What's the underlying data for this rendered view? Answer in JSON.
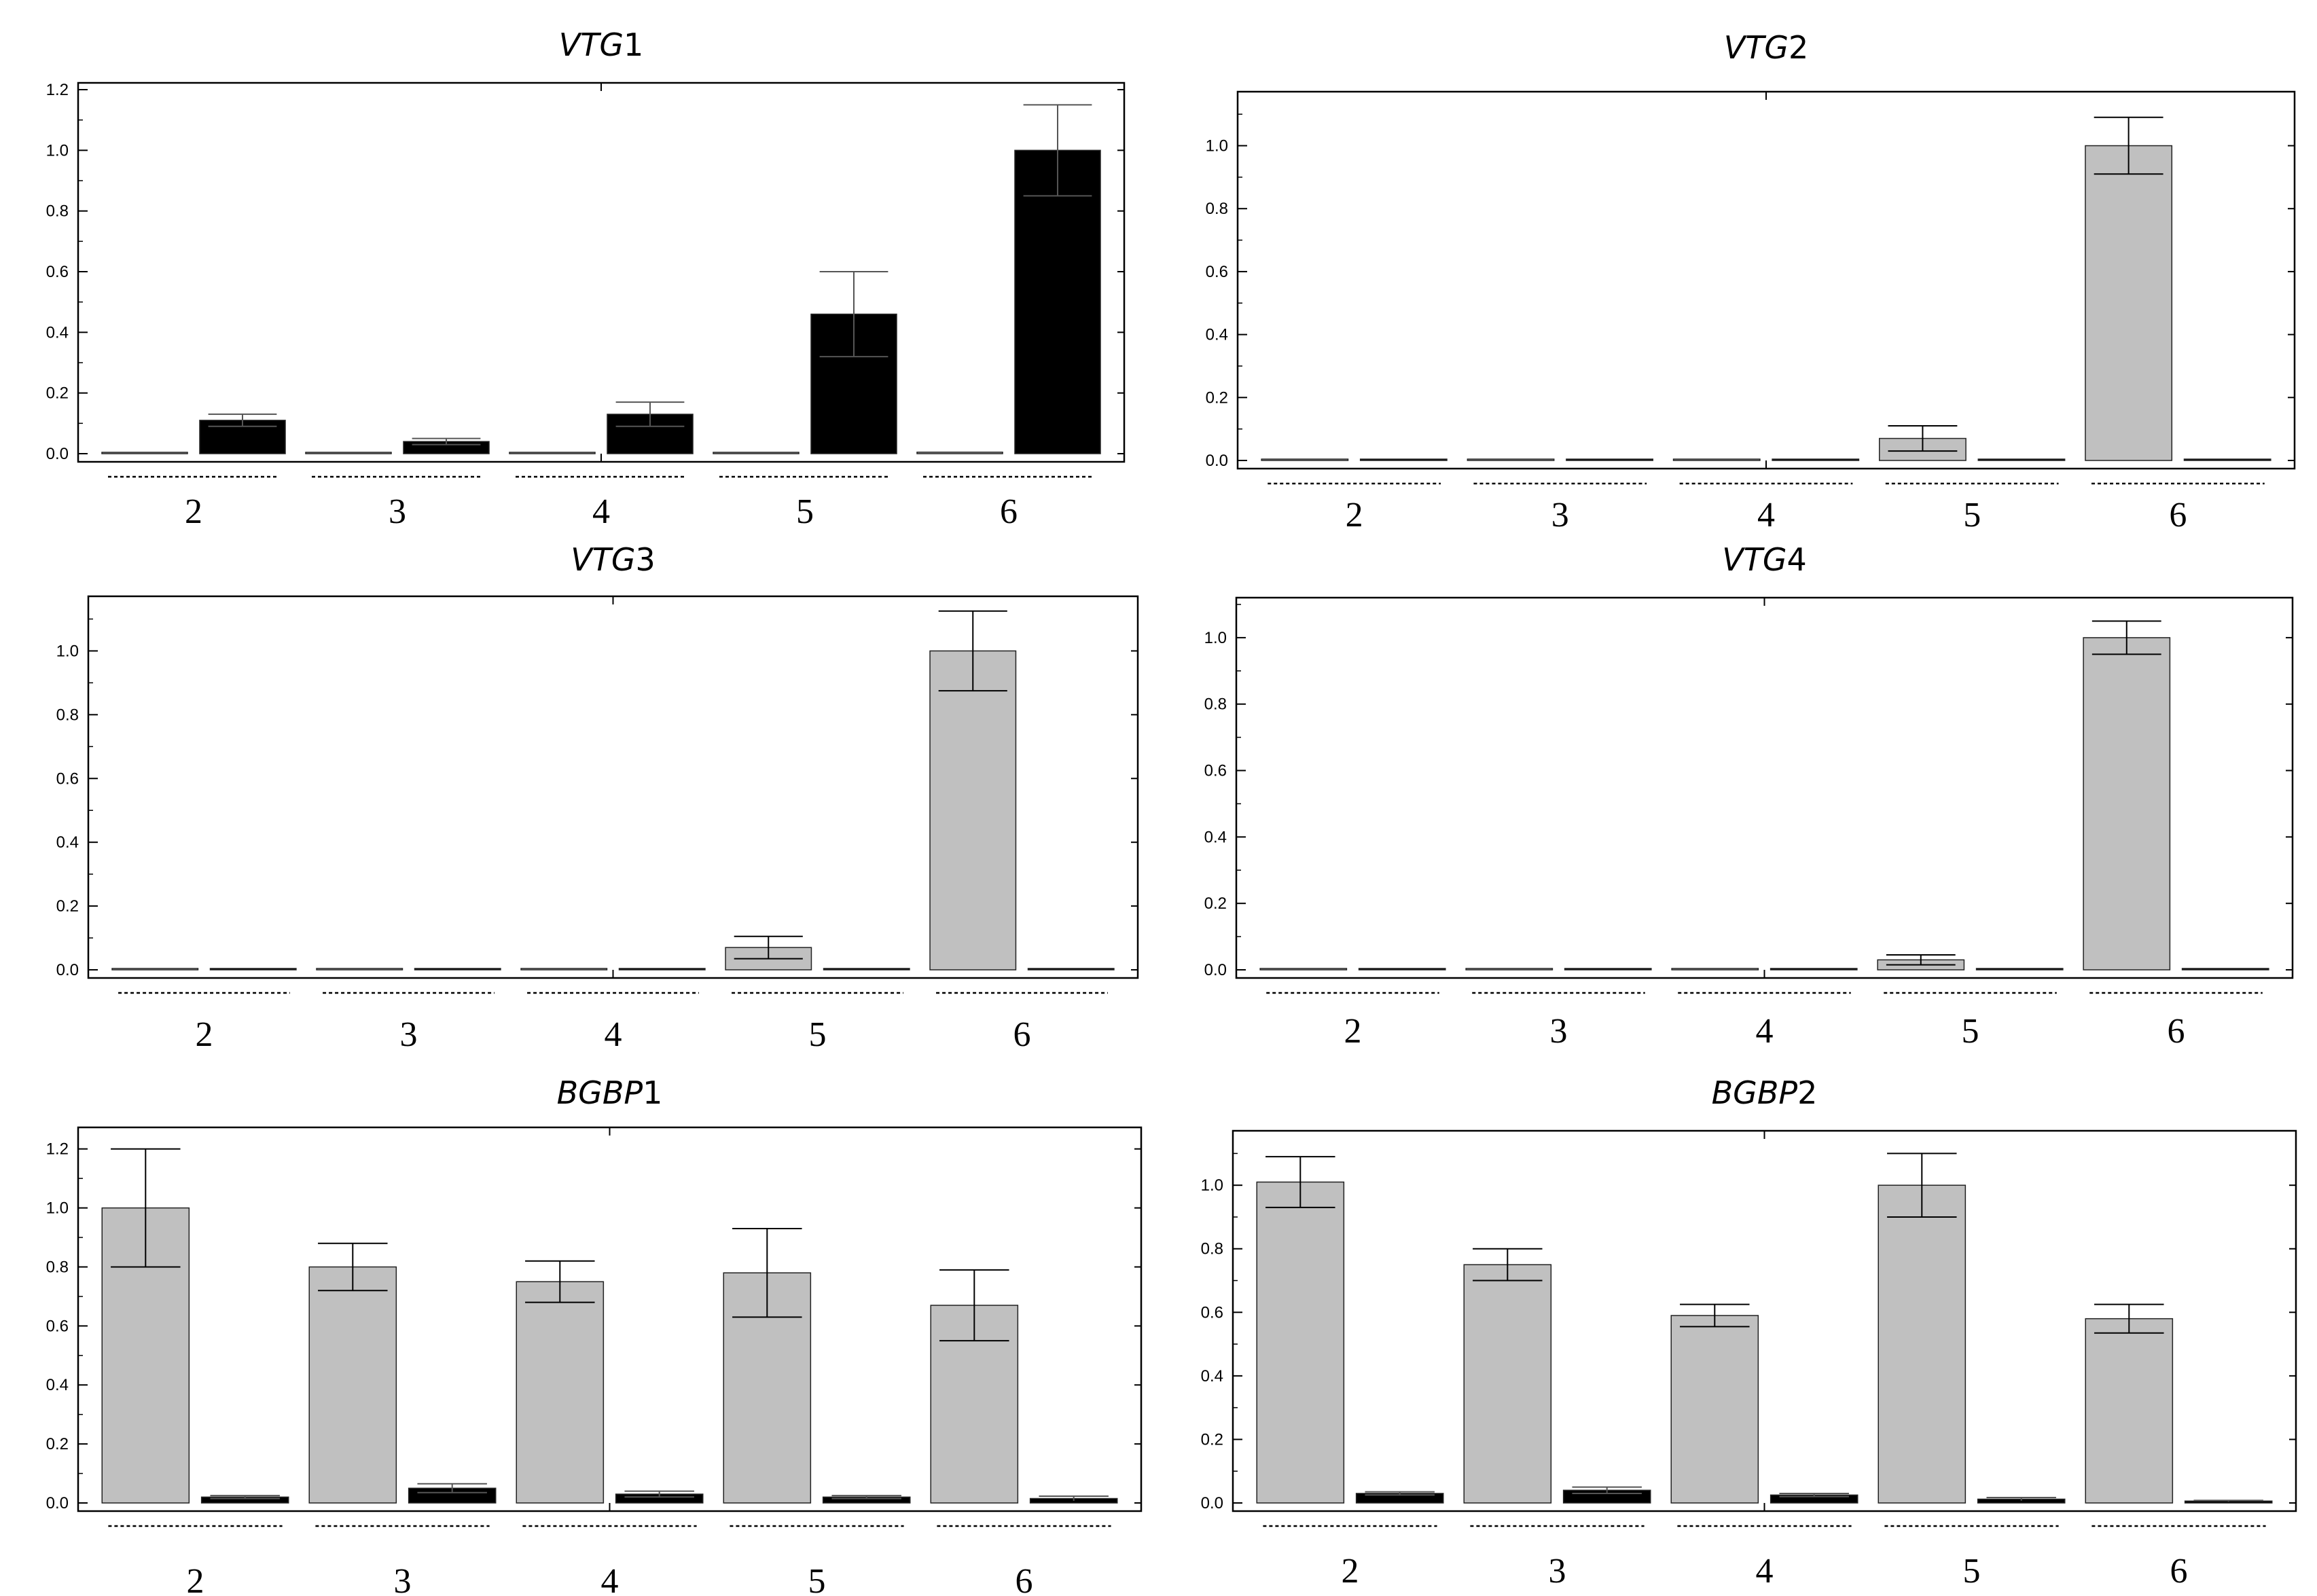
{
  "figure": {
    "type": "multi-panel bar chart",
    "series_colors": {
      "gray": "#c0c0c0",
      "black": "#000000"
    }
  },
  "chart_data": [
    {
      "type": "bar",
      "title": "VTG1",
      "title_italic": "VTG",
      "title_suffix": "1",
      "categories": [
        "2",
        "3",
        "4",
        "5",
        "6"
      ],
      "series": [
        {
          "name": "gray",
          "color": "#c0c0c0",
          "values": [
            0.0,
            0.0,
            0.0,
            0.0,
            0.005
          ],
          "errors": [
            0,
            0,
            0,
            0,
            0
          ]
        },
        {
          "name": "black",
          "color": "#000000",
          "values": [
            0.11,
            0.04,
            0.13,
            0.46,
            1.0
          ],
          "errors": [
            0.02,
            0.01,
            0.04,
            0.14,
            0.15
          ]
        }
      ],
      "ylim": [
        0,
        1.2
      ],
      "yticks": [
        "0.0",
        "0.2",
        "0.4",
        "0.6",
        "0.8",
        "1.0",
        "1.2"
      ],
      "xlabel": "",
      "ylabel": ""
    },
    {
      "type": "bar",
      "title": "VTG2",
      "title_italic": "VTG",
      "title_suffix": "2",
      "categories": [
        "2",
        "3",
        "4",
        "5",
        "6"
      ],
      "series": [
        {
          "name": "gray",
          "color": "#c0c0c0",
          "values": [
            0.0,
            0.0,
            0.004,
            0.07,
            1.0
          ],
          "errors": [
            0,
            0,
            0,
            0.04,
            0.09
          ]
        },
        {
          "name": "black",
          "color": "#000000",
          "values": [
            0.0,
            0.0,
            0.0,
            0.0,
            0.0
          ],
          "errors": [
            0,
            0,
            0,
            0,
            0
          ]
        }
      ],
      "ylim": [
        0,
        1.15
      ],
      "yticks": [
        "0.0",
        "0.2",
        "0.4",
        "0.6",
        "0.8",
        "1.0"
      ],
      "xlabel": "",
      "ylabel": ""
    },
    {
      "type": "bar",
      "title": "VTG3",
      "title_italic": "VTG",
      "title_suffix": "3",
      "categories": [
        "2",
        "3",
        "4",
        "5",
        "6"
      ],
      "series": [
        {
          "name": "gray",
          "color": "#c0c0c0",
          "values": [
            0.0,
            0.0,
            0.0,
            0.07,
            1.0
          ],
          "errors": [
            0,
            0,
            0,
            0.035,
            0.125
          ]
        },
        {
          "name": "black",
          "color": "#000000",
          "values": [
            0.0,
            0.0,
            0.0,
            0.0,
            0.0
          ],
          "errors": [
            0,
            0,
            0,
            0,
            0
          ]
        }
      ],
      "ylim": [
        0,
        1.15
      ],
      "yticks": [
        "0.0",
        "0.2",
        "0.4",
        "0.6",
        "0.8",
        "1.0"
      ],
      "xlabel": "",
      "ylabel": ""
    },
    {
      "type": "bar",
      "title": "VTG4",
      "title_italic": "VTG",
      "title_suffix": "4",
      "categories": [
        "2",
        "3",
        "4",
        "5",
        "6"
      ],
      "series": [
        {
          "name": "gray",
          "color": "#c0c0c0",
          "values": [
            0.0,
            0.0,
            0.0,
            0.03,
            1.0
          ],
          "errors": [
            0,
            0,
            0,
            0.015,
            0.05
          ]
        },
        {
          "name": "black",
          "color": "#000000",
          "values": [
            0.0,
            0.0,
            0.0,
            0.0,
            0.0
          ],
          "errors": [
            0,
            0,
            0,
            0,
            0
          ]
        }
      ],
      "ylim": [
        0,
        1.1
      ],
      "yticks": [
        "0.0",
        "0.2",
        "0.4",
        "0.6",
        "0.8",
        "1.0"
      ],
      "xlabel": "",
      "ylabel": ""
    },
    {
      "type": "bar",
      "title": "BGBP1",
      "title_italic": "BGBP",
      "title_suffix": "1",
      "categories": [
        "2",
        "3",
        "4",
        "5",
        "6"
      ],
      "series": [
        {
          "name": "gray",
          "color": "#c0c0c0",
          "values": [
            1.0,
            0.8,
            0.75,
            0.78,
            0.67
          ],
          "errors": [
            0.2,
            0.08,
            0.07,
            0.15,
            0.12
          ]
        },
        {
          "name": "black",
          "color": "#000000",
          "values": [
            0.02,
            0.05,
            0.03,
            0.02,
            0.015
          ],
          "errors": [
            0.005,
            0.015,
            0.01,
            0.005,
            0.008
          ]
        }
      ],
      "ylim": [
        0,
        1.25
      ],
      "yticks": [
        "0.0",
        "0.2",
        "0.4",
        "0.6",
        "0.8",
        "1.0",
        "1.2"
      ],
      "xlabel": "",
      "ylabel": ""
    },
    {
      "type": "bar",
      "title": "BGBP2",
      "title_italic": "BGBP",
      "title_suffix": "2",
      "categories": [
        "2",
        "3",
        "4",
        "5",
        "6"
      ],
      "series": [
        {
          "name": "gray",
          "color": "#c0c0c0",
          "values": [
            1.01,
            0.75,
            0.59,
            1.0,
            0.58
          ],
          "errors": [
            0.08,
            0.05,
            0.035,
            0.1,
            0.045
          ]
        },
        {
          "name": "black",
          "color": "#000000",
          "values": [
            0.03,
            0.04,
            0.025,
            0.012,
            0.006
          ],
          "errors": [
            0.005,
            0.01,
            0.005,
            0.005,
            0.002
          ]
        }
      ],
      "ylim": [
        0,
        1.15
      ],
      "yticks": [
        "0.0",
        "0.2",
        "0.4",
        "0.6",
        "0.8",
        "1.0"
      ],
      "xlabel": "",
      "ylabel": ""
    }
  ]
}
